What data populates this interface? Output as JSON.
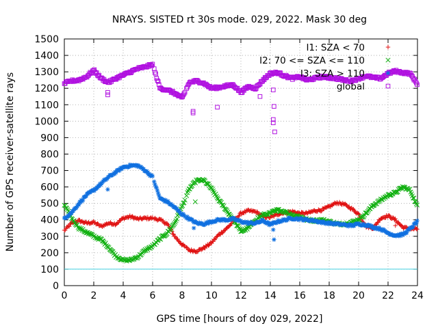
{
  "chart_data": {
    "type": "scatter",
    "title": "NRAYS. SISTED rt 30s mode. 029, 2022. Mask 30 deg",
    "xlabel": "GPS time [hours of doy 029, 2022]",
    "ylabel": "Number of GPS receiver-satellite rays",
    "xlim": [
      0,
      24
    ],
    "ylim": [
      0,
      1500
    ],
    "x_ticks": [
      0,
      2,
      4,
      6,
      8,
      10,
      12,
      14,
      16,
      18,
      20,
      22,
      24
    ],
    "y_ticks": [
      0,
      100,
      200,
      300,
      400,
      500,
      600,
      700,
      800,
      900,
      1000,
      1100,
      1200,
      1300,
      1400,
      1500
    ],
    "grid": true,
    "legend_position": "top-right",
    "reference_line": {
      "y": 100,
      "color": "#40d0e0"
    },
    "series": [
      {
        "name": "I1: SZA < 70",
        "marker": "+",
        "color": "#e01010",
        "points": [
          [
            0,
            335
          ],
          [
            0.5,
            380
          ],
          [
            1,
            395
          ],
          [
            1.5,
            380
          ],
          [
            2,
            385
          ],
          [
            2.5,
            360
          ],
          [
            3,
            380
          ],
          [
            3.5,
            375
          ],
          [
            4,
            410
          ],
          [
            4.5,
            420
          ],
          [
            5,
            405
          ],
          [
            5.5,
            410
          ],
          [
            6,
            410
          ],
          [
            6.5,
            400
          ],
          [
            7,
            375
          ],
          [
            7.5,
            300
          ],
          [
            8,
            250
          ],
          [
            8.5,
            215
          ],
          [
            9,
            210
          ],
          [
            9.5,
            230
          ],
          [
            10,
            260
          ],
          [
            10.5,
            310
          ],
          [
            11,
            345
          ],
          [
            11.5,
            390
          ],
          [
            12,
            440
          ],
          [
            12.5,
            455
          ],
          [
            13,
            450
          ],
          [
            13.5,
            420
          ],
          [
            14,
            415
          ],
          [
            14.5,
            435
          ],
          [
            15,
            445
          ],
          [
            15.5,
            450
          ],
          [
            16,
            440
          ],
          [
            16.5,
            440
          ],
          [
            17,
            455
          ],
          [
            17.5,
            460
          ],
          [
            18,
            480
          ],
          [
            18.5,
            505
          ],
          [
            19,
            495
          ],
          [
            19.5,
            470
          ],
          [
            20,
            435
          ],
          [
            20.5,
            360
          ],
          [
            21,
            350
          ],
          [
            21.5,
            410
          ],
          [
            22,
            425
          ],
          [
            22.5,
            400
          ],
          [
            23,
            355
          ],
          [
            23.5,
            345
          ],
          [
            24,
            345
          ]
        ]
      },
      {
        "name": "I2: 70 <= SZA <= 110",
        "marker": "x",
        "color": "#10b010",
        "points": [
          [
            0,
            490
          ],
          [
            0.5,
            410
          ],
          [
            1,
            350
          ],
          [
            1.5,
            325
          ],
          [
            2,
            300
          ],
          [
            2.5,
            280
          ],
          [
            3,
            235
          ],
          [
            3.5,
            180
          ],
          [
            4,
            155
          ],
          [
            4.5,
            155
          ],
          [
            5,
            175
          ],
          [
            5.5,
            215
          ],
          [
            6,
            240
          ],
          [
            6.5,
            285
          ],
          [
            7,
            320
          ],
          [
            7.5,
            380
          ],
          [
            8,
            480
          ],
          [
            8.5,
            590
          ],
          [
            9,
            640
          ],
          [
            9.5,
            640
          ],
          [
            10,
            590
          ],
          [
            10.5,
            520
          ],
          [
            11,
            460
          ],
          [
            11.5,
            400
          ],
          [
            12,
            330
          ],
          [
            12.5,
            350
          ],
          [
            13,
            400
          ],
          [
            13.5,
            430
          ],
          [
            14,
            440
          ],
          [
            14.5,
            460
          ],
          [
            15,
            450
          ],
          [
            15.5,
            430
          ],
          [
            16,
            420
          ],
          [
            16.5,
            400
          ],
          [
            17,
            395
          ],
          [
            17.5,
            400
          ],
          [
            18,
            390
          ],
          [
            18.5,
            375
          ],
          [
            19,
            375
          ],
          [
            19.5,
            385
          ],
          [
            20,
            400
          ],
          [
            20.5,
            440
          ],
          [
            21,
            490
          ],
          [
            21.5,
            520
          ],
          [
            22,
            550
          ],
          [
            22.5,
            565
          ],
          [
            23,
            600
          ],
          [
            23.5,
            580
          ],
          [
            24,
            480
          ]
        ]
      },
      {
        "name": "I3: SZA > 110",
        "marker": "*",
        "color": "#1070e0",
        "points": [
          [
            0,
            410
          ],
          [
            0.5,
            445
          ],
          [
            1,
            500
          ],
          [
            1.5,
            550
          ],
          [
            2,
            580
          ],
          [
            2.5,
            620
          ],
          [
            3,
            660
          ],
          [
            3.5,
            690
          ],
          [
            4,
            720
          ],
          [
            4.5,
            730
          ],
          [
            5,
            730
          ],
          [
            5.5,
            700
          ],
          [
            6,
            660
          ],
          [
            6.5,
            530
          ],
          [
            7,
            510
          ],
          [
            7.5,
            475
          ],
          [
            8,
            435
          ],
          [
            8.5,
            405
          ],
          [
            9,
            380
          ],
          [
            9.5,
            375
          ],
          [
            10,
            390
          ],
          [
            10.5,
            400
          ],
          [
            11,
            400
          ],
          [
            11.5,
            405
          ],
          [
            12,
            390
          ],
          [
            12.5,
            380
          ],
          [
            13,
            380
          ],
          [
            13.5,
            395
          ],
          [
            14,
            370
          ],
          [
            14.5,
            390
          ],
          [
            15,
            400
          ],
          [
            15.5,
            410
          ],
          [
            16,
            405
          ],
          [
            16.5,
            400
          ],
          [
            17,
            395
          ],
          [
            17.5,
            385
          ],
          [
            18,
            380
          ],
          [
            18.5,
            375
          ],
          [
            19,
            370
          ],
          [
            19.5,
            365
          ],
          [
            20,
            375
          ],
          [
            20.5,
            370
          ],
          [
            21,
            355
          ],
          [
            21.5,
            345
          ],
          [
            22,
            320
          ],
          [
            22.5,
            305
          ],
          [
            23,
            310
          ],
          [
            23.5,
            345
          ],
          [
            24,
            390
          ]
        ]
      },
      {
        "name": "global",
        "marker": "square",
        "color": "#b010e0",
        "points": [
          [
            0,
            1230
          ],
          [
            0.5,
            1245
          ],
          [
            1,
            1250
          ],
          [
            1.5,
            1270
          ],
          [
            2,
            1310
          ],
          [
            2.5,
            1260
          ],
          [
            3,
            1235
          ],
          [
            3.5,
            1260
          ],
          [
            4,
            1280
          ],
          [
            4.5,
            1300
          ],
          [
            5,
            1320
          ],
          [
            5.5,
            1330
          ],
          [
            6,
            1345
          ],
          [
            6.5,
            1200
          ],
          [
            7,
            1190
          ],
          [
            7.5,
            1170
          ],
          [
            8,
            1140
          ],
          [
            8.5,
            1235
          ],
          [
            9,
            1245
          ],
          [
            9.5,
            1230
          ],
          [
            10,
            1200
          ],
          [
            10.5,
            1205
          ],
          [
            11,
            1215
          ],
          [
            11.5,
            1220
          ],
          [
            12,
            1175
          ],
          [
            12.5,
            1210
          ],
          [
            13,
            1200
          ],
          [
            13.5,
            1250
          ],
          [
            14,
            1290
          ],
          [
            14.5,
            1295
          ],
          [
            15,
            1275
          ],
          [
            15.5,
            1260
          ],
          [
            16,
            1270
          ],
          [
            16.5,
            1250
          ],
          [
            17,
            1260
          ],
          [
            17.5,
            1270
          ],
          [
            18,
            1265
          ],
          [
            18.5,
            1260
          ],
          [
            19,
            1250
          ],
          [
            19.5,
            1245
          ],
          [
            20,
            1260
          ],
          [
            20.5,
            1275
          ],
          [
            21,
            1265
          ],
          [
            21.5,
            1260
          ],
          [
            22,
            1290
          ],
          [
            22.5,
            1305
          ],
          [
            23,
            1295
          ],
          [
            23.5,
            1290
          ],
          [
            24,
            1225
          ]
        ]
      }
    ],
    "outliers": {
      "global": [
        [
          2.95,
          1175
        ],
        [
          2.95,
          1160
        ],
        [
          8.75,
          1060
        ],
        [
          8.75,
          1050
        ],
        [
          10.4,
          1085
        ],
        [
          13.3,
          1150
        ],
        [
          14.2,
          1190
        ],
        [
          14.25,
          1090
        ],
        [
          14.2,
          1010
        ],
        [
          14.2,
          990
        ],
        [
          14.3,
          935
        ]
      ],
      "I3: SZA > 110": [
        [
          2.95,
          585
        ],
        [
          8.8,
          350
        ],
        [
          14.2,
          340
        ],
        [
          14.25,
          280
        ]
      ],
      "I2: 70 <= SZA <= 110": [
        [
          8.9,
          510
        ]
      ],
      "I1: SZA < 70": [
        [
          22.5,
          365
        ]
      ]
    }
  }
}
